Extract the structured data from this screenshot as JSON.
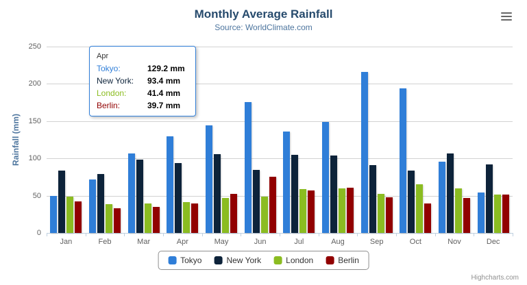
{
  "chart_data": {
    "type": "bar",
    "title": "Monthly Average Rainfall",
    "subtitle": "Source: WorldClimate.com",
    "xlabel": "",
    "ylabel": "Rainfall (mm)",
    "ylim": [
      0,
      250
    ],
    "yticks": [
      0,
      50,
      100,
      150,
      200,
      250
    ],
    "grid": true,
    "legend_position": "bottom",
    "categories": [
      "Jan",
      "Feb",
      "Mar",
      "Apr",
      "May",
      "Jun",
      "Jul",
      "Aug",
      "Sep",
      "Oct",
      "Nov",
      "Dec"
    ],
    "series": [
      {
        "name": "Tokyo",
        "color": "#2f7ed8",
        "values": [
          49.9,
          71.5,
          106.4,
          129.2,
          144.0,
          176.0,
          135.6,
          148.5,
          216.4,
          194.1,
          95.6,
          54.4
        ]
      },
      {
        "name": "New York",
        "color": "#0d233a",
        "values": [
          83.6,
          78.8,
          98.5,
          93.4,
          106.0,
          84.5,
          105.0,
          104.3,
          91.2,
          83.5,
          106.6,
          92.3
        ]
      },
      {
        "name": "London",
        "color": "#8bbc21",
        "values": [
          48.9,
          38.8,
          39.3,
          41.4,
          47.0,
          48.3,
          59.0,
          59.6,
          52.4,
          65.2,
          59.3,
          51.2
        ]
      },
      {
        "name": "Berlin",
        "color": "#910000",
        "values": [
          42.4,
          33.2,
          34.5,
          39.7,
          52.6,
          75.5,
          57.4,
          60.4,
          47.6,
          39.1,
          46.8,
          51.1
        ]
      }
    ]
  },
  "tooltip": {
    "header": "Apr",
    "border_color": "#2f7ed8",
    "rows": [
      {
        "label": "Tokyo:",
        "value": "129.2 mm",
        "color": "#2f7ed8"
      },
      {
        "label": "New York:",
        "value": "93.4 mm",
        "color": "#0d233a"
      },
      {
        "label": "London:",
        "value": "41.4 mm",
        "color": "#8bbc21"
      },
      {
        "label": "Berlin:",
        "value": "39.7 mm",
        "color": "#910000"
      }
    ]
  },
  "credit": "Highcharts.com"
}
